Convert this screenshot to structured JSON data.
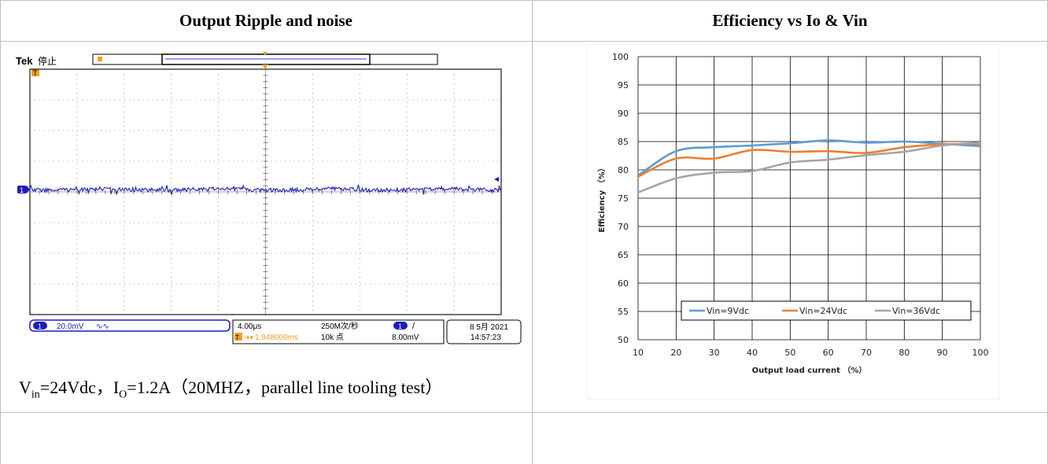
{
  "table": {
    "left_header": "Output Ripple and noise",
    "right_header": "Efficiency vs Io & Vin"
  },
  "scope": {
    "brand": "Tek",
    "state": "停止",
    "trigger_marker": "T",
    "ch1_marker": "1",
    "ch1_badge": "1",
    "ch1_scale": "20.0mV",
    "ch1_bw": "∿∿",
    "timebase": "4.00μs",
    "sample_rate": "250M次/秒",
    "trigger_pos": "1.948000ms",
    "record_len": "10k 点",
    "trig_ch_badge": "1",
    "trig_slope": "/",
    "trig_level": "8.00mV",
    "date": "8 5月 2021",
    "time": "14:57:23",
    "colors": {
      "trace": "#1c1cbf",
      "accent": "#f0a020",
      "grid": "#7a7a7a"
    }
  },
  "caption": {
    "v": "V",
    "v_sub": "in",
    "v_val": "=24Vdc，I",
    "i_sub": "O",
    "i_val": "=1.2A（20MHZ，parallel line tooling test）"
  },
  "chart_data": {
    "type": "line",
    "title": "",
    "xlabel": "Output load current （%）",
    "ylabel": "Efficiency （%）",
    "xlim": [
      10,
      100
    ],
    "ylim": [
      50,
      100
    ],
    "xticks": [
      10,
      20,
      30,
      40,
      50,
      60,
      70,
      80,
      90,
      100
    ],
    "yticks": [
      50,
      55,
      60,
      65,
      70,
      75,
      80,
      85,
      90,
      95,
      100
    ],
    "grid": true,
    "legend_position": "bottom",
    "x": [
      10,
      20,
      30,
      40,
      50,
      60,
      70,
      80,
      90,
      100
    ],
    "series": [
      {
        "name": "Vin=9Vdc",
        "color": "#5b9bd5",
        "values": [
          79.0,
          83.3,
          84.0,
          84.3,
          84.7,
          85.2,
          84.8,
          85.0,
          84.6,
          84.2
        ]
      },
      {
        "name": "Vin=24Vdc",
        "color": "#ed7d31",
        "values": [
          78.8,
          82.0,
          82.0,
          83.5,
          83.2,
          83.3,
          83.0,
          84.0,
          84.5,
          84.6
        ]
      },
      {
        "name": "Vin=36Vdc",
        "color": "#a5a5a5",
        "values": [
          76.0,
          78.5,
          79.5,
          79.8,
          81.3,
          81.8,
          82.6,
          83.2,
          84.3,
          84.8
        ]
      }
    ]
  }
}
